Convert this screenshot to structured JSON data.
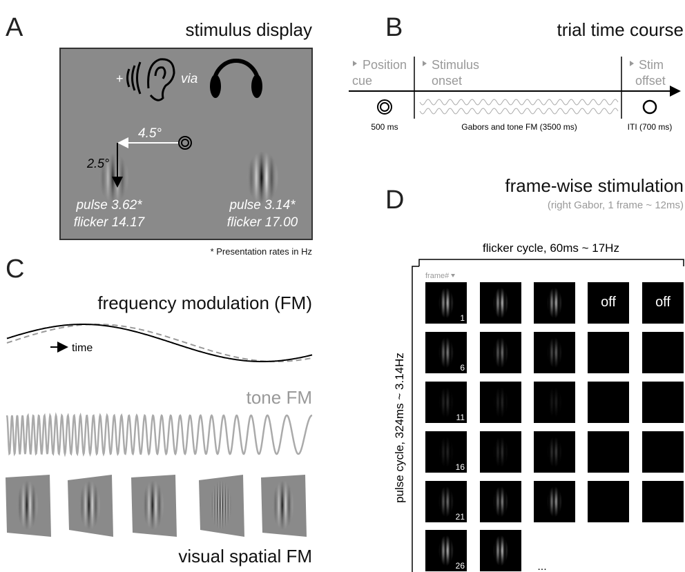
{
  "panel_a": {
    "letter": "A",
    "title": "stimulus display",
    "plus": "+",
    "via": "via",
    "horizontal_eccentricity": "4.5°",
    "vertical_eccentricity": "2.5°",
    "left_gabor": {
      "pulse": "pulse 3.62*",
      "flicker": "flicker 14.17"
    },
    "right_gabor": {
      "pulse": "pulse 3.14*",
      "flicker": "flicker 17.00"
    },
    "footnote": "* Presentation rates in Hz"
  },
  "panel_b": {
    "letter": "B",
    "title": "trial time course",
    "phases": [
      {
        "label": [
          "Position",
          "cue"
        ]
      },
      {
        "label": [
          "Stimulus",
          "onset"
        ]
      },
      {
        "label": [
          "Stim",
          "offset"
        ]
      }
    ],
    "durations": [
      "500 ms",
      "Gabors and tone FM (3500 ms)",
      "ITI (700 ms)"
    ]
  },
  "panel_c": {
    "letter": "C",
    "title": "frequency modulation (FM)",
    "time_label": "time",
    "tone_label": "tone FM",
    "visual_label": "visual spatial FM"
  },
  "panel_d": {
    "letter": "D",
    "title": "frame-wise stimulation",
    "subtitle": "(right Gabor, 1 frame ~ 12ms)",
    "flicker_cycle": "flicker cycle, 60ms ~ 17Hz",
    "pulse_cycle": "pulse cycle, 324ms ~ 3.14Hz",
    "frame_header": "frame#",
    "row_start_frames": [
      1,
      6,
      11,
      16,
      21,
      26
    ],
    "off_labels": [
      "off",
      "off"
    ],
    "ellipsis": "..."
  }
}
